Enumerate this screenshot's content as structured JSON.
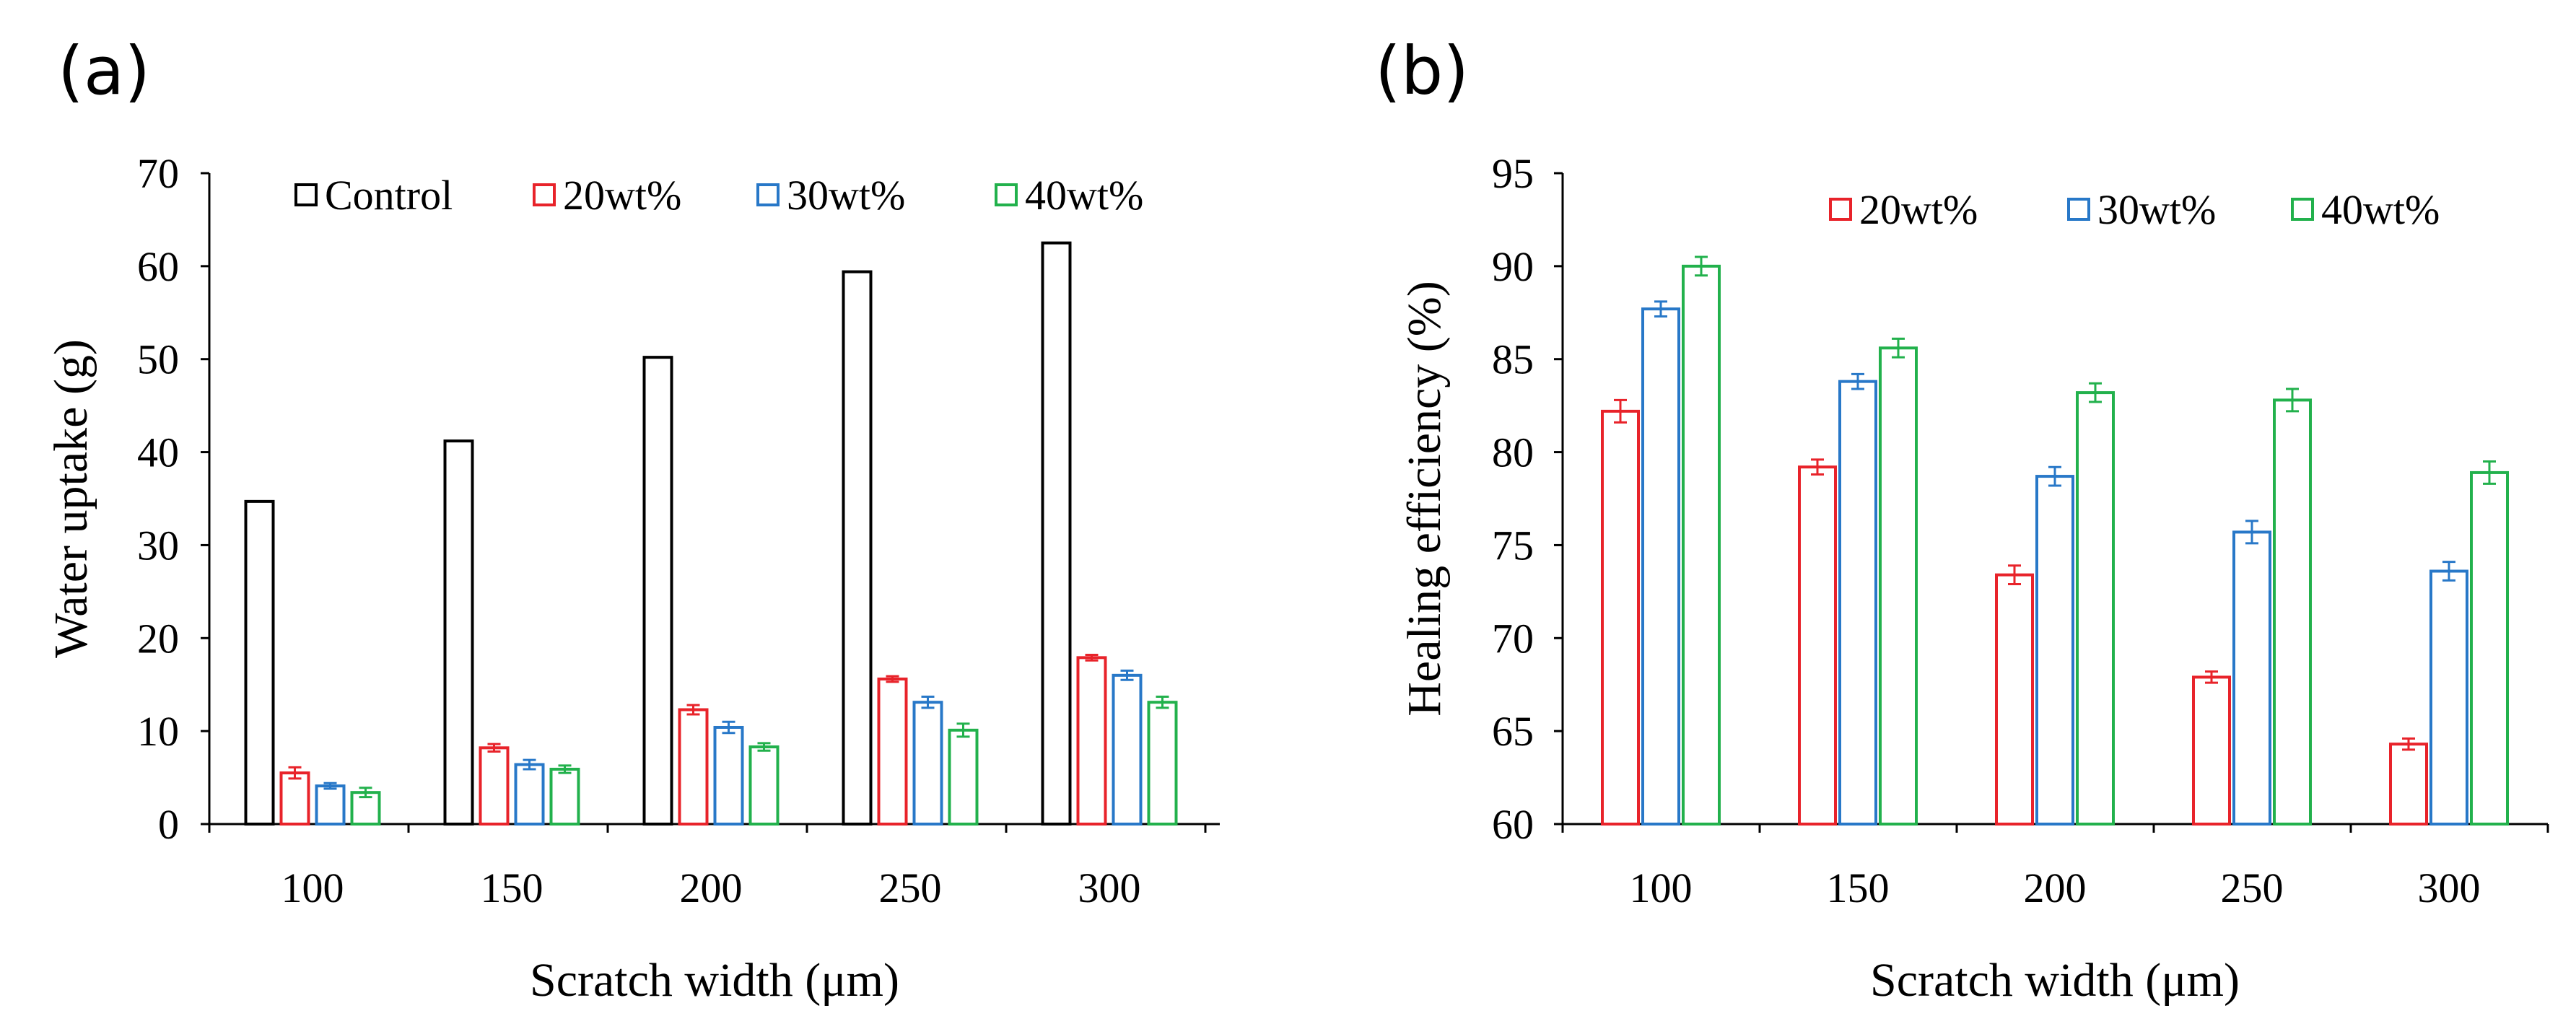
{
  "chart_data": [
    {
      "panel_label": "(a)",
      "type": "bar",
      "title": "",
      "xlabel": "Scratch width (μm)",
      "ylabel": "Water uptake (g)",
      "ylim": [
        0,
        70
      ],
      "yticks": [
        "0",
        "10",
        "20",
        "30",
        "40",
        "50",
        "60",
        "70"
      ],
      "categories": [
        "100",
        "150",
        "200",
        "250",
        "300"
      ],
      "legend_position": "top",
      "series": [
        {
          "name": "Control",
          "color": "#000000",
          "values": [
            34.7,
            41.2,
            50.2,
            59.4,
            62.5
          ],
          "errors": null
        },
        {
          "name": "20wt%",
          "color": "#e8232a",
          "values": [
            5.5,
            8.2,
            12.3,
            15.6,
            17.9
          ],
          "errors": [
            0.6,
            0.4,
            0.5,
            0.3,
            0.3
          ]
        },
        {
          "name": "30wt%",
          "color": "#2878c8",
          "values": [
            4.1,
            6.4,
            10.4,
            13.1,
            16.0
          ],
          "errors": [
            0.3,
            0.5,
            0.6,
            0.6,
            0.5
          ]
        },
        {
          "name": "40wt%",
          "color": "#22b14c",
          "values": [
            3.4,
            5.9,
            8.3,
            10.1,
            13.1
          ],
          "errors": [
            0.5,
            0.4,
            0.4,
            0.7,
            0.6
          ]
        }
      ]
    },
    {
      "panel_label": "(b)",
      "type": "bar",
      "title": "",
      "xlabel": "Scratch width (μm)",
      "ylabel": "Healing efficiency (%)",
      "ylim": [
        60,
        95
      ],
      "yticks": [
        "60",
        "65",
        "70",
        "75",
        "80",
        "85",
        "90",
        "95"
      ],
      "categories": [
        "100",
        "150",
        "200",
        "250",
        "300"
      ],
      "legend_position": "top-right",
      "series": [
        {
          "name": "20wt%",
          "color": "#e8232a",
          "values": [
            82.2,
            79.2,
            73.4,
            67.9,
            64.3
          ],
          "errors": [
            0.6,
            0.4,
            0.5,
            0.3,
            0.3
          ]
        },
        {
          "name": "30wt%",
          "color": "#2878c8",
          "values": [
            87.7,
            83.8,
            78.7,
            75.7,
            73.6
          ],
          "errors": [
            0.4,
            0.4,
            0.5,
            0.6,
            0.5
          ]
        },
        {
          "name": "40wt%",
          "color": "#22b14c",
          "values": [
            90.0,
            85.6,
            83.2,
            82.8,
            78.9
          ],
          "errors": [
            0.5,
            0.5,
            0.5,
            0.6,
            0.6
          ]
        }
      ]
    }
  ]
}
